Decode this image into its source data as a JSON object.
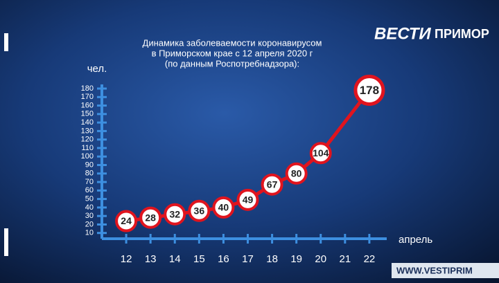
{
  "chart_data": {
    "type": "line",
    "title": [
      "Динамика заболеваемости коронавирусом",
      "в Приморском крае с 12 апреля 2020 г",
      "(по данным Роспотребнадзора):"
    ],
    "y_label": "чел.",
    "x_label": "апрель",
    "x": [
      12,
      13,
      14,
      15,
      16,
      17,
      18,
      19,
      20,
      22
    ],
    "values": [
      24,
      28,
      32,
      36,
      40,
      49,
      67,
      80,
      104,
      178
    ],
    "color": "#e0141e",
    "xlim": [
      11,
      23
    ],
    "xticks": [
      12,
      13,
      14,
      15,
      16,
      17,
      18,
      19,
      20,
      21,
      22
    ],
    "ylim": [
      0,
      180
    ],
    "yticks": [
      10,
      20,
      30,
      40,
      50,
      60,
      70,
      80,
      90,
      100,
      110,
      120,
      130,
      140,
      150,
      160,
      170,
      180
    ],
    "grid": false
  },
  "logo": {
    "left": "ВЕСТИ",
    "right": "ПРИМОР"
  },
  "website": "WWW.VESTIPRIM"
}
